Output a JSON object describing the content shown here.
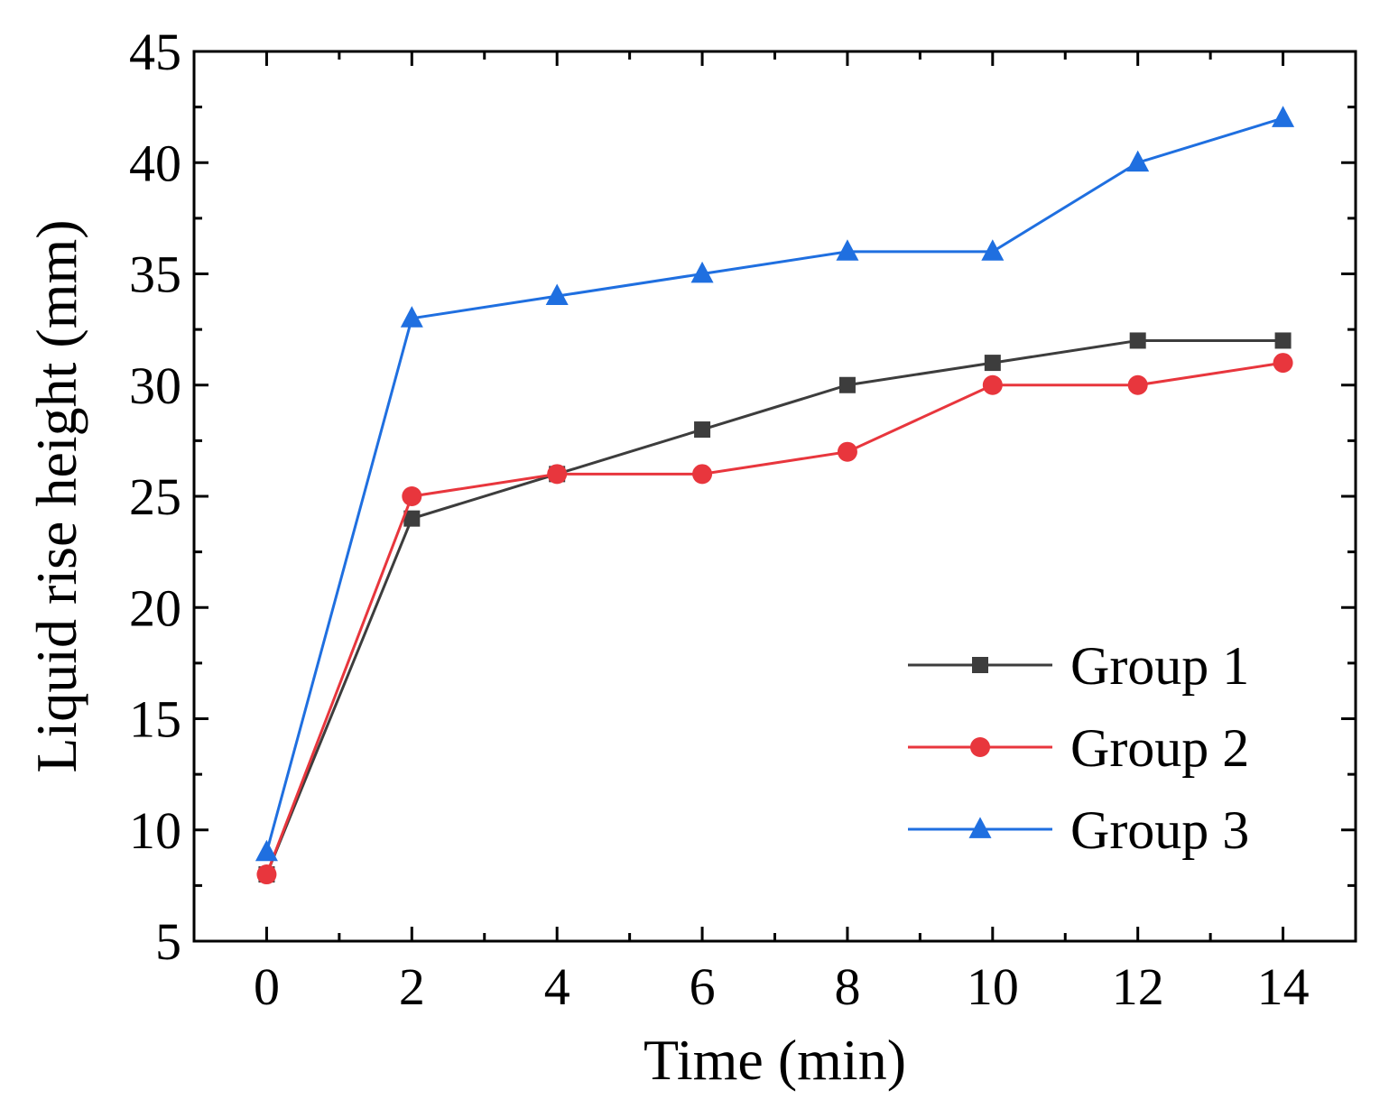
{
  "chart_data": {
    "type": "line",
    "title": "",
    "xlabel": "Time (min)",
    "ylabel": "Liquid rise height (mm)",
    "x": [
      0,
      2,
      4,
      6,
      8,
      10,
      12,
      14
    ],
    "xlim": [
      -1,
      15
    ],
    "ylim": [
      5,
      45
    ],
    "xticks": [
      0,
      2,
      4,
      6,
      8,
      10,
      12,
      14
    ],
    "xtick_labels": [
      "0",
      "2",
      "4",
      "6",
      "8",
      "10",
      "12",
      "14"
    ],
    "yticks": [
      5,
      10,
      15,
      20,
      25,
      30,
      35,
      40,
      45
    ],
    "ytick_labels": [
      "5",
      "10",
      "15",
      "20",
      "25",
      "30",
      "35",
      "40",
      "45"
    ],
    "grid": false,
    "legend_position": "bottom-right",
    "series": [
      {
        "name": "Group 1",
        "label": "Group 1",
        "color": "#3d3d3d",
        "marker": "square",
        "values": [
          8,
          24,
          26,
          28,
          30,
          31,
          32,
          32
        ]
      },
      {
        "name": "Group 2",
        "label": "Group 2",
        "color": "#e8363d",
        "marker": "circle",
        "values": [
          8,
          25,
          26,
          26,
          27,
          30,
          30,
          31
        ]
      },
      {
        "name": "Group 3",
        "label": "Group 3",
        "color": "#1f6fe0",
        "marker": "triangle",
        "values": [
          9,
          33,
          34,
          35,
          36,
          36,
          40,
          42
        ]
      }
    ]
  }
}
